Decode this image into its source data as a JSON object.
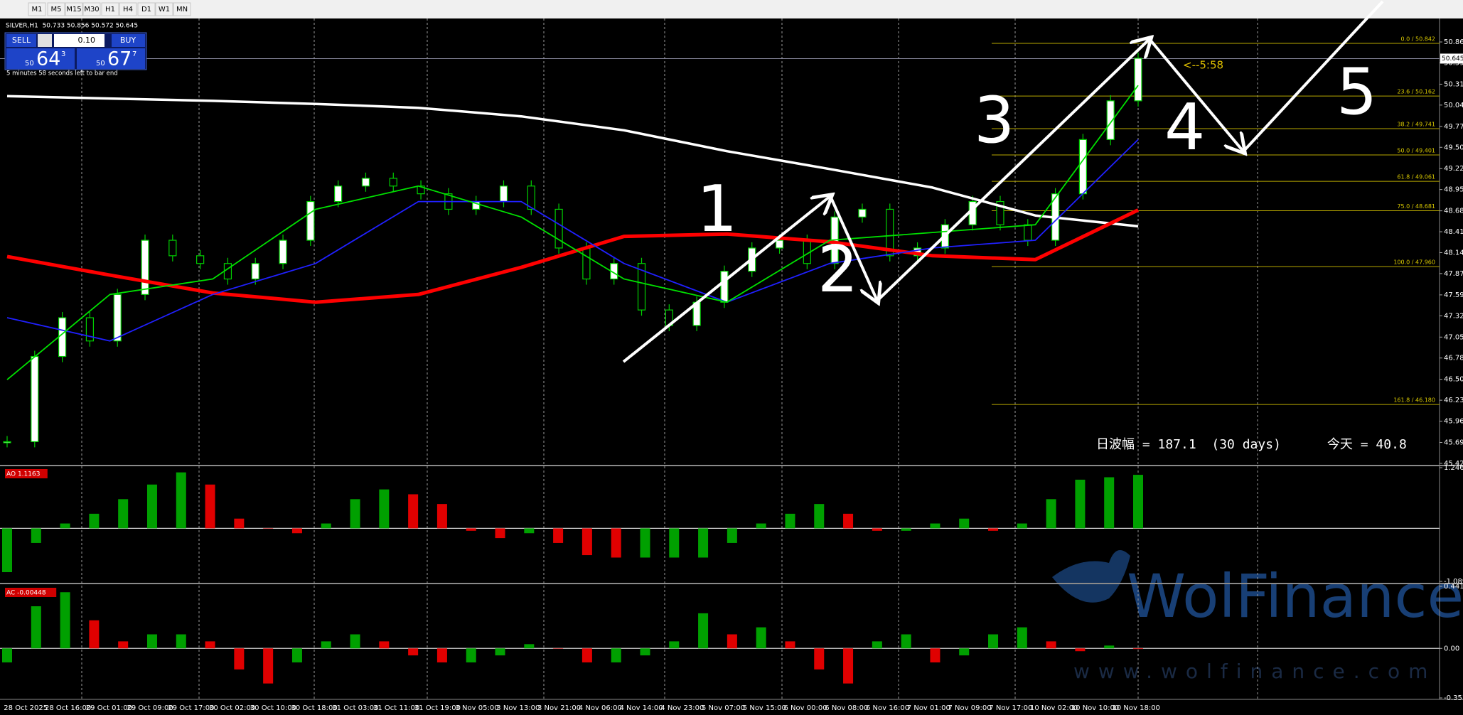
{
  "toolbar": {
    "timeframes": [
      "M1",
      "M5",
      "M15",
      "M30",
      "H1",
      "H4",
      "D1",
      "W1",
      "MN"
    ]
  },
  "symbol_info": "SILVER,H1  50.733 50.856 50.572 50.645",
  "trade_panel": {
    "sell": "SELL",
    "lot": "0.10",
    "buy": "BUY",
    "bid_prefix": "50",
    "bid_main": "64",
    "bid_sup": "3",
    "ask_prefix": "50",
    "ask_main": "67",
    "ask_sup": "7"
  },
  "bar_timer": "5 minutes 58 seconds left to bar end",
  "price_chart": {
    "ylim": [
      45.392,
      51.163
    ],
    "yticks": [
      {
        "value": 50.86,
        "label": "50.860"
      },
      {
        "value": 50.59,
        "label": "50.590"
      },
      50.315,
      50.045,
      {
        "value": 49.77,
        "label": "49.770"
      },
      {
        "value": 49.5,
        "label": "49.500"
      },
      49.225,
      48.955,
      {
        "value": 48.68,
        "label": "48.680"
      },
      {
        "value": 48.41,
        "label": "48.410"
      },
      {
        "value": 48.14,
        "label": "48.140"
      },
      {
        "value": 47.87,
        "label": "47.870"
      },
      47.595,
      47.325,
      {
        "value": 47.05,
        "label": "47.050"
      },
      {
        "value": 46.78,
        "label": "46.780"
      },
      46.505,
      46.235,
      45.965,
      {
        "value": 45.69,
        "label": "45.690"
      },
      {
        "value": 45.42,
        "label": "45.420"
      }
    ],
    "current_price": {
      "value": 50.645,
      "label": "50.645"
    },
    "closes": [
      45.7,
      46.8,
      47.3,
      47.0,
      47.6,
      48.3,
      48.1,
      48.0,
      47.8,
      48.0,
      48.3,
      48.8,
      49.0,
      49.1,
      49.0,
      48.9,
      48.7,
      48.8,
      49.0,
      48.7,
      48.2,
      47.8,
      48.0,
      47.4,
      47.2,
      47.5,
      47.9,
      48.2,
      48.3,
      48.0,
      48.6,
      48.7,
      48.1,
      48.2,
      48.5,
      48.8,
      48.5,
      48.3,
      48.9,
      49.6,
      50.1,
      50.65
    ],
    "moving_averages": [
      {
        "color": "#ffffff",
        "values": [
          50.16,
          50.13,
          50.1,
          50.06,
          50.01,
          49.9,
          49.72,
          49.45,
          49.22,
          48.98,
          48.62,
          48.48
        ]
      },
      {
        "color": "#ff0000",
        "values": [
          48.09,
          47.85,
          47.62,
          47.5,
          47.6,
          47.95,
          48.35,
          48.38,
          48.28,
          48.1,
          48.05,
          48.69
        ]
      },
      {
        "color": "#2020ff",
        "values": [
          47.3,
          47.0,
          47.6,
          48.0,
          48.8,
          48.8,
          48.0,
          47.5,
          48.0,
          48.2,
          48.3,
          49.6
        ]
      },
      {
        "color": "#00e000",
        "values": [
          46.5,
          47.6,
          47.8,
          48.7,
          49.0,
          48.6,
          47.8,
          47.5,
          48.3,
          48.4,
          48.5,
          50.3
        ]
      }
    ],
    "fibonacci": [
      {
        "label": "0.0 / 50.842",
        "price": 50.842
      },
      {
        "label": "23.6 / 50.162",
        "price": 50.162
      },
      {
        "label": "38.2 / 49.741",
        "price": 49.741
      },
      {
        "label": "50.0 / 49.401",
        "price": 49.401
      },
      {
        "label": "61.8 / 49.061",
        "price": 49.061
      },
      {
        "label": "75.0 / 48.681",
        "price": 48.681
      },
      {
        "label": "100.0 / 47.960",
        "price": 47.96
      },
      {
        "label": "161.8 / 46.180",
        "price": 46.18
      }
    ],
    "countdown": "<--5:58",
    "stats": "日波幅 = 187.1  (30 days)      今天 = 40.8",
    "wave_labels": [
      "1",
      "2",
      "3",
      "4",
      "5"
    ]
  },
  "ao": {
    "label": "AO 1.1163",
    "ylim": [
      -1.0895,
      1.2469
    ],
    "yticks": [
      1.2469,
      -1.0895
    ],
    "values": [
      -0.9,
      -0.3,
      0.1,
      0.3,
      0.6,
      0.9,
      1.15,
      0.9,
      0.2,
      0.0,
      -0.1,
      0.1,
      0.6,
      0.8,
      0.7,
      0.5,
      -0.05,
      -0.2,
      -0.1,
      -0.3,
      -0.55,
      -0.6,
      -0.6,
      -0.6,
      -0.6,
      -0.3,
      0.1,
      0.3,
      0.5,
      0.3,
      -0.05,
      -0.05,
      0.1,
      0.2,
      -0.05,
      0.1,
      0.6,
      1.0,
      1.05,
      1.1
    ]
  },
  "ac": {
    "label": "AC -0.00448",
    "ylim": [
      -0.35304,
      0.44178
    ],
    "yticks": [
      0.44178,
      {
        "value": 0,
        "label": "0.00"
      },
      -0.35304
    ],
    "values": [
      -0.1,
      0.3,
      0.4,
      0.2,
      0.05,
      0.1,
      0.1,
      0.05,
      -0.15,
      -0.25,
      -0.1,
      0.05,
      0.1,
      0.05,
      -0.05,
      -0.1,
      -0.1,
      -0.05,
      0.03,
      0.0,
      -0.1,
      -0.1,
      -0.05,
      0.05,
      0.25,
      0.1,
      0.15,
      0.05,
      -0.15,
      -0.25,
      0.05,
      0.1,
      -0.1,
      -0.05,
      0.1,
      0.15,
      0.05,
      -0.02,
      0.02,
      -0.0045
    ]
  },
  "time_axis": [
    "28 Oct 2025",
    "28 Oct 16:00",
    "29 Oct 01:00",
    "29 Oct 09:00",
    "29 Oct 17:00",
    "30 Oct 02:00",
    "30 Oct 10:00",
    "30 Oct 18:00",
    "31 Oct 03:00",
    "31 Oct 11:00",
    "31 Oct 19:00",
    "3 Nov 05:00",
    "3 Nov 13:00",
    "3 Nov 21:00",
    "4 Nov 06:00",
    "4 Nov 14:00",
    "4 Nov 23:00",
    "5 Nov 07:00",
    "5 Nov 15:00",
    "6 Nov 00:00",
    "6 Nov 08:00",
    "6 Nov 16:00",
    "7 Nov 01:00",
    "7 Nov 09:00",
    "7 Nov 17:00",
    "10 Nov 02:00",
    "10 Nov 10:00",
    "10 Nov 18:00"
  ],
  "watermark": {
    "brand": "WolFinance",
    "url": "www.wolfinance.com"
  }
}
